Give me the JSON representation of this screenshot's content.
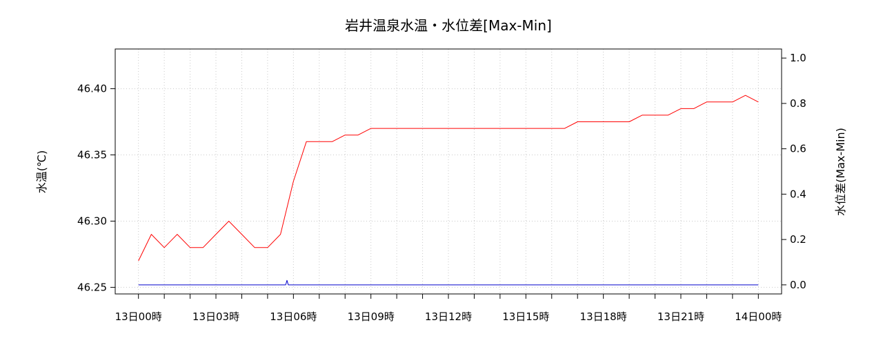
{
  "chart_data": {
    "type": "line",
    "title": "岩井温泉水温・水位差[Max-Min]",
    "ylabel_left": "水温(℃)",
    "ylabel_right": "水位差(Max-Min)",
    "ylim_left": [
      46.245,
      46.43
    ],
    "ylim_right": [
      -0.04,
      1.04
    ],
    "xlim_hours": [
      -0.9,
      24.9
    ],
    "grid": true,
    "x_tick_labels": [
      "13日00時",
      "13日03時",
      "13日06時",
      "13日09時",
      "13日12時",
      "13日15時",
      "13日18時",
      "13日21時",
      "14日00時"
    ],
    "x_tick_hours": [
      0,
      3,
      6,
      9,
      12,
      15,
      18,
      21,
      24
    ],
    "x_minor_tick_hours": [
      1,
      2,
      4,
      5,
      7,
      8,
      10,
      11,
      13,
      14,
      16,
      17,
      19,
      20,
      22,
      23
    ],
    "y_left_ticks": [
      {
        "v": 46.25,
        "label": "46.25"
      },
      {
        "v": 46.3,
        "label": "46.30"
      },
      {
        "v": 46.35,
        "label": "46.35"
      },
      {
        "v": 46.4,
        "label": "46.40"
      }
    ],
    "y_right_ticks": [
      {
        "v": 0.0,
        "label": "0.0"
      },
      {
        "v": 0.2,
        "label": "0.2"
      },
      {
        "v": 0.4,
        "label": "0.4"
      },
      {
        "v": 0.6,
        "label": "0.6"
      },
      {
        "v": 0.8,
        "label": "0.8"
      },
      {
        "v": 1.0,
        "label": "1.0"
      }
    ],
    "series": [
      {
        "color": "#ff0000",
        "axis": "left",
        "x_hours": [
          0,
          0.5,
          1,
          1.5,
          2,
          2.5,
          3,
          3.5,
          4,
          4.5,
          5,
          5.5,
          6,
          6.5,
          7,
          7.5,
          8,
          8.5,
          9,
          9.5,
          10,
          10.5,
          11,
          11.5,
          12,
          12.5,
          13,
          13.5,
          14,
          14.5,
          15,
          15.5,
          16,
          16.5,
          17,
          17.5,
          18,
          18.5,
          19,
          19.5,
          20,
          20.5,
          21,
          21.5,
          22,
          22.5,
          23,
          23.5,
          24
        ],
        "values": [
          46.27,
          46.29,
          46.28,
          46.29,
          46.28,
          46.28,
          46.29,
          46.3,
          46.29,
          46.28,
          46.28,
          46.29,
          46.33,
          46.36,
          46.36,
          46.36,
          46.365,
          46.365,
          46.37,
          46.37,
          46.37,
          46.37,
          46.37,
          46.37,
          46.37,
          46.37,
          46.37,
          46.37,
          46.37,
          46.37,
          46.37,
          46.37,
          46.37,
          46.37,
          46.375,
          46.375,
          46.375,
          46.375,
          46.375,
          46.38,
          46.38,
          46.38,
          46.385,
          46.385,
          46.39,
          46.39,
          46.39,
          46.395,
          46.39
        ]
      },
      {
        "color": "#0000cc",
        "axis": "right",
        "x_hours": [
          0,
          5.7,
          5.75,
          5.8,
          24
        ],
        "values": [
          0.0,
          0.0,
          0.02,
          0.0,
          0.0
        ]
      }
    ]
  }
}
